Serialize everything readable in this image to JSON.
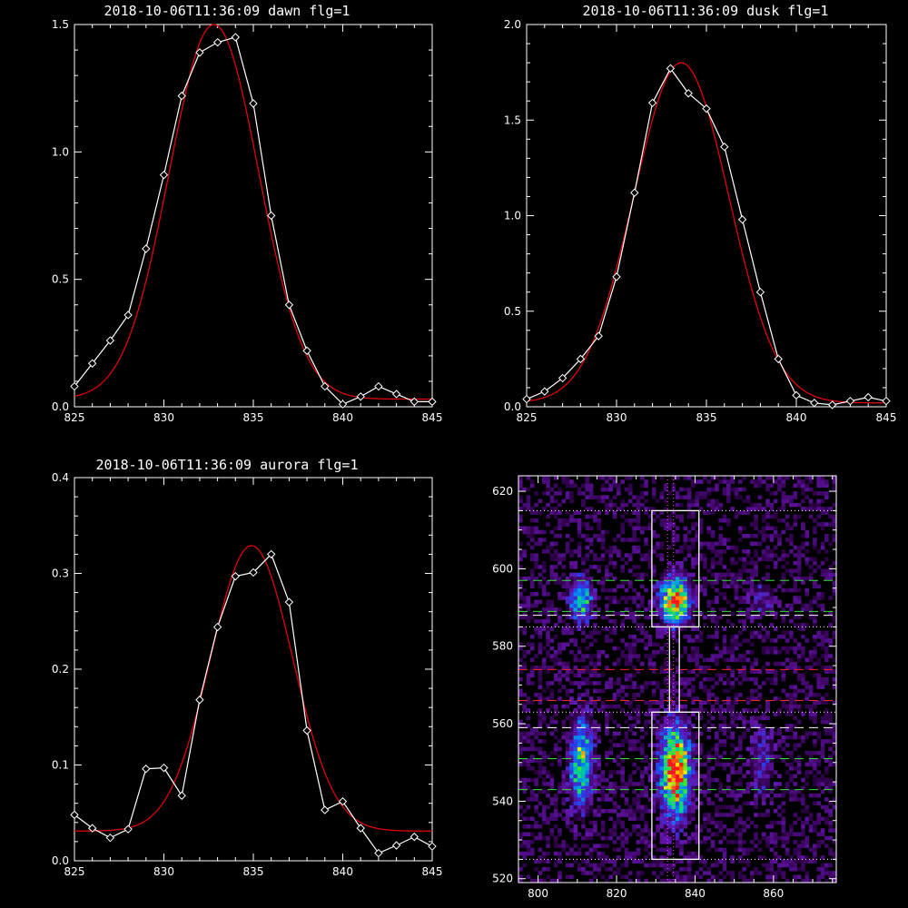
{
  "chart_data": [
    {
      "id": "dawn",
      "type": "line",
      "title": "2018-10-06T11:36:09 dawn flg=1",
      "xlim": [
        825,
        845
      ],
      "ylim": [
        0,
        1.5
      ],
      "xticks": [
        "825",
        "830",
        "835",
        "840",
        "845"
      ],
      "yticks": [
        "0.0",
        "0.5",
        "1.0",
        "1.5"
      ],
      "series": [
        {
          "kind": "measured",
          "color": "#ffffff",
          "x": [
            825,
            826,
            827,
            828,
            829,
            830,
            831,
            832,
            833,
            834,
            835,
            836,
            837,
            838,
            839,
            840,
            841,
            842,
            843,
            844,
            845
          ],
          "y": [
            0.08,
            0.17,
            0.26,
            0.36,
            0.62,
            0.91,
            1.22,
            1.39,
            1.43,
            1.45,
            1.19,
            0.75,
            0.4,
            0.22,
            0.08,
            0.01,
            0.04,
            0.08,
            0.05,
            0.02,
            0.02
          ]
        },
        {
          "kind": "fit",
          "color": "#e0000a",
          "gauss": {
            "a": 1.47,
            "mu": 832.8,
            "sigma": 2.5,
            "c": 0.03
          }
        }
      ]
    },
    {
      "id": "dusk",
      "type": "line",
      "title": "2018-10-06T11:36:09 dusk flg=1",
      "xlim": [
        825,
        845
      ],
      "ylim": [
        0,
        2.0
      ],
      "xticks": [
        "825",
        "830",
        "835",
        "840",
        "845"
      ],
      "yticks": [
        "0.0",
        "0.5",
        "1.0",
        "1.5",
        "2.0"
      ],
      "series": [
        {
          "kind": "measured",
          "color": "#ffffff",
          "x": [
            825,
            826,
            827,
            828,
            829,
            830,
            831,
            832,
            833,
            834,
            835,
            836,
            837,
            838,
            839,
            840,
            841,
            842,
            843,
            844,
            845
          ],
          "y": [
            0.04,
            0.08,
            0.15,
            0.25,
            0.37,
            0.68,
            1.12,
            1.59,
            1.77,
            1.64,
            1.56,
            1.36,
            0.98,
            0.6,
            0.25,
            0.06,
            0.02,
            0.01,
            0.03,
            0.05,
            0.03
          ]
        },
        {
          "kind": "fit",
          "color": "#e0000a",
          "gauss": {
            "a": 1.78,
            "mu": 833.6,
            "sigma": 2.65,
            "c": 0.02
          }
        }
      ]
    },
    {
      "id": "aurora",
      "type": "line",
      "title": "2018-10-06T11:36:09 aurora flg=1",
      "xlim": [
        825,
        845
      ],
      "ylim": [
        0,
        0.4
      ],
      "xticks": [
        "825",
        "830",
        "835",
        "840",
        "845"
      ],
      "yticks": [
        "0.0",
        "0.1",
        "0.2",
        "0.3",
        "0.4"
      ],
      "series": [
        {
          "kind": "measured",
          "color": "#ffffff",
          "x": [
            825,
            826,
            827,
            828,
            829,
            830,
            831,
            832,
            833,
            834,
            835,
            836,
            837,
            838,
            839,
            840,
            841,
            842,
            843,
            844,
            845
          ],
          "y": [
            0.048,
            0.034,
            0.024,
            0.033,
            0.096,
            0.097,
            0.068,
            0.168,
            0.244,
            0.297,
            0.301,
            0.32,
            0.27,
            0.136,
            0.053,
            0.062,
            0.034,
            0.008,
            0.016,
            0.025,
            0.015
          ]
        },
        {
          "kind": "fit",
          "color": "#e0000a",
          "gauss": {
            "a": 0.298,
            "mu": 834.9,
            "sigma": 2.3,
            "c": 0.031
          }
        }
      ]
    },
    {
      "id": "image",
      "type": "heatmap",
      "xlim": [
        795,
        876
      ],
      "ylim": [
        519,
        624
      ],
      "xticks": [
        {
          "v": 800,
          "label": "800"
        },
        {
          "v": 820,
          "label": "820"
        },
        {
          "v": 840,
          "label": "840"
        },
        {
          "v": 860,
          "label": "860"
        }
      ],
      "yticks": [
        {
          "v": 520,
          "label": "520"
        },
        {
          "v": 540,
          "label": "540"
        },
        {
          "v": 560,
          "label": "560"
        },
        {
          "v": 580,
          "label": "580"
        },
        {
          "v": 600,
          "label": "600"
        },
        {
          "v": 620,
          "label": "620"
        }
      ],
      "boxes": [
        {
          "x0": 829,
          "x1": 841,
          "y0": 585,
          "y1": 615
        },
        {
          "x0": 829,
          "x1": 841,
          "y0": 525,
          "y1": 563
        },
        {
          "x0": 833.5,
          "x1": 836,
          "y0": 563,
          "y1": 585
        }
      ],
      "dotted_hlines": [
        {
          "y": 615,
          "color": "#ffffff"
        },
        {
          "y": 585,
          "color": "#ffffff"
        },
        {
          "y": 563,
          "color": "#ffffff"
        },
        {
          "y": 525,
          "color": "#ffffff"
        }
      ],
      "dotted_vlines": [
        {
          "x": 833,
          "color": "#ff40ff"
        },
        {
          "x": 834.5,
          "color": "#ff40ff"
        }
      ],
      "dashed_hlines": [
        {
          "y": 597,
          "color": "#33dd33"
        },
        {
          "y": 589,
          "color": "#33dd33"
        },
        {
          "y": 588,
          "color": "#ffffff"
        },
        {
          "y": 574,
          "color": "#ff2020"
        },
        {
          "y": 566,
          "color": "#ff2020"
        },
        {
          "y": 559,
          "color": "#ffffff"
        },
        {
          "y": 551,
          "color": "#33dd33"
        },
        {
          "y": 543,
          "color": "#33dd33"
        }
      ],
      "emission_blobs": [
        {
          "x": 835,
          "y": 592,
          "sx": 2.6,
          "sy": 4.2,
          "a": 0.95
        },
        {
          "x": 835,
          "y": 548,
          "sx": 2.6,
          "sy": 8.0,
          "a": 1.0
        },
        {
          "x": 811,
          "y": 592,
          "sx": 2.0,
          "sy": 4.0,
          "a": 0.6
        },
        {
          "x": 811,
          "y": 550,
          "sx": 2.0,
          "sy": 8.0,
          "a": 0.62
        },
        {
          "x": 857,
          "y": 592,
          "sx": 2.2,
          "sy": 4.0,
          "a": 0.18
        },
        {
          "x": 857,
          "y": 550,
          "sx": 2.2,
          "sy": 6.5,
          "a": 0.24
        }
      ]
    }
  ]
}
